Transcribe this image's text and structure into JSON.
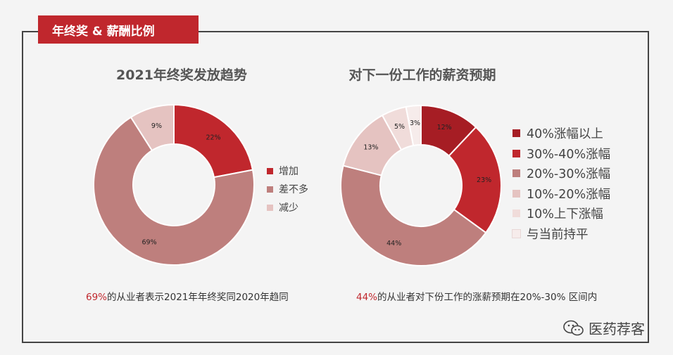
{
  "header": {
    "title": "年终奖 & 薪酬比例"
  },
  "chart_data": [
    {
      "type": "pie",
      "title": "2021年终奖发放趋势",
      "categories": [
        "增加",
        "差不多",
        "减少"
      ],
      "values": [
        22,
        69,
        9
      ],
      "labels": [
        "22%",
        "69%",
        "9%"
      ],
      "colors": [
        "#c0272d",
        "#be7f7d",
        "#e5c3c1"
      ],
      "legend_position": "right"
    },
    {
      "type": "pie",
      "title": "对下一份工作的薪资预期",
      "categories": [
        "40%涨幅以上",
        "30%-40%涨幅",
        "20%-30%涨幅",
        "10%-20%涨幅",
        "10%上下涨幅",
        "与当前持平"
      ],
      "values": [
        12,
        23,
        44,
        13,
        5,
        3
      ],
      "labels": [
        "12%",
        "23%",
        "44%",
        "13%",
        "5%",
        "3%"
      ],
      "colors": [
        "#a61d24",
        "#c0272d",
        "#be7f7d",
        "#e5c3c1",
        "#f0dcda",
        "#f6eceb"
      ],
      "legend_position": "right"
    }
  ],
  "captions": {
    "left": {
      "highlight": "69%",
      "text": "的从业者表示2021年年终奖同2020年趋同"
    },
    "right": {
      "highlight": "44%",
      "text": "的从业者对下份工作的涨薪预期在20%-30% 区间内"
    }
  },
  "watermark": {
    "text": "医药荐客",
    "icon": "wechat-icon"
  }
}
